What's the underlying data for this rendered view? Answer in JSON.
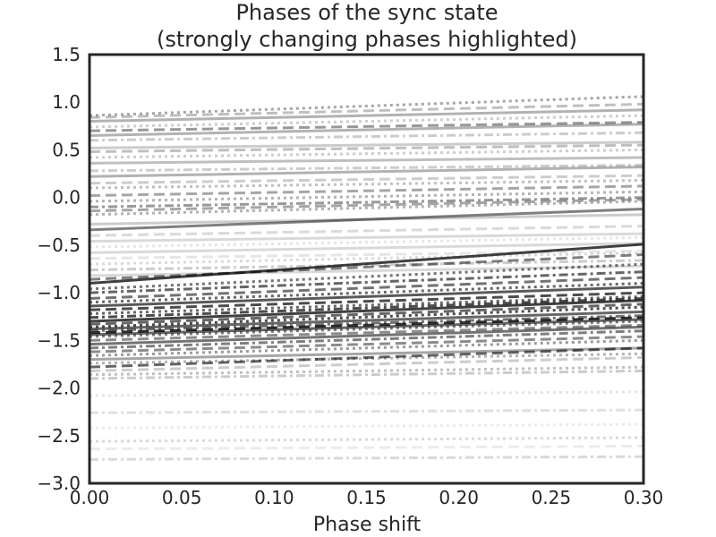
{
  "chart_data": {
    "type": "line",
    "title_line1": "Phases of the sync state",
    "title_line2": "(strongly changing phases highlighted)",
    "xlabel": "Phase shift",
    "ylabel": "",
    "xlim": [
      0.0,
      0.3
    ],
    "ylim": [
      -3.0,
      1.5
    ],
    "x_ticks": [
      0.0,
      0.05,
      0.1,
      0.15,
      0.2,
      0.25,
      0.3
    ],
    "x_tick_labels": [
      "0.00",
      "0.05",
      "0.10",
      "0.15",
      "0.20",
      "0.25",
      "0.30"
    ],
    "y_ticks": [
      1.5,
      1.0,
      0.5,
      0.0,
      -0.5,
      -1.0,
      -1.5,
      -2.0,
      -2.5,
      -3.0
    ],
    "y_tick_labels": [
      "1.5",
      "1.0",
      "0.5",
      "0.0",
      "−0.5",
      "−1.0",
      "−1.5",
      "−2.0",
      "−2.5",
      "−3.0"
    ],
    "grid": false,
    "legend": "none",
    "line_color": "#000000",
    "series_styles": [
      "solid",
      "dashed",
      "dotted",
      "dashdot"
    ],
    "series": [
      {
        "start": 0.86,
        "end": 1.06,
        "alpha": 0.35,
        "style": "dotted"
      },
      {
        "start": 0.84,
        "end": 0.98,
        "alpha": 0.25,
        "style": "dashed"
      },
      {
        "start": 0.8,
        "end": 0.92,
        "alpha": 0.3,
        "style": "solid"
      },
      {
        "start": 0.74,
        "end": 0.86,
        "alpha": 0.2,
        "style": "dotted"
      },
      {
        "start": 0.7,
        "end": 0.79,
        "alpha": 0.4,
        "style": "dashed"
      },
      {
        "start": 0.65,
        "end": 0.77,
        "alpha": 0.3,
        "style": "solid"
      },
      {
        "start": 0.6,
        "end": 0.68,
        "alpha": 0.2,
        "style": "dashdot"
      },
      {
        "start": 0.52,
        "end": 0.58,
        "alpha": 0.2,
        "style": "solid"
      },
      {
        "start": 0.48,
        "end": 0.55,
        "alpha": 0.25,
        "style": "dashed"
      },
      {
        "start": 0.42,
        "end": 0.5,
        "alpha": 0.2,
        "style": "dotted"
      },
      {
        "start": 0.36,
        "end": 0.42,
        "alpha": 0.25,
        "style": "solid"
      },
      {
        "start": 0.28,
        "end": 0.34,
        "alpha": 0.2,
        "style": "dashdot"
      },
      {
        "start": 0.22,
        "end": 0.32,
        "alpha": 0.3,
        "style": "solid"
      },
      {
        "start": 0.15,
        "end": 0.23,
        "alpha": 0.2,
        "style": "dashed"
      },
      {
        "start": 0.1,
        "end": 0.18,
        "alpha": 0.25,
        "style": "dotted"
      },
      {
        "start": 0.02,
        "end": 0.12,
        "alpha": 0.35,
        "style": "dashed"
      },
      {
        "start": -0.04,
        "end": 0.06,
        "alpha": 0.3,
        "style": "dotted"
      },
      {
        "start": -0.1,
        "end": 0.0,
        "alpha": 0.4,
        "style": "dashdot"
      },
      {
        "start": -0.14,
        "end": -0.02,
        "alpha": 0.35,
        "style": "dashed"
      },
      {
        "start": -0.18,
        "end": -0.04,
        "alpha": 0.3,
        "style": "dotted"
      },
      {
        "start": -0.34,
        "end": -0.12,
        "alpha": 0.5,
        "style": "solid"
      },
      {
        "start": -0.28,
        "end": -0.18,
        "alpha": 0.2,
        "style": "solid"
      },
      {
        "start": -0.4,
        "end": -0.3,
        "alpha": 0.15,
        "style": "dashed"
      },
      {
        "start": -0.46,
        "end": -0.38,
        "alpha": 0.15,
        "style": "solid"
      },
      {
        "start": -0.52,
        "end": -0.42,
        "alpha": 0.1,
        "style": "dotted"
      },
      {
        "start": -0.58,
        "end": -0.48,
        "alpha": 0.15,
        "style": "solid"
      },
      {
        "start": -0.64,
        "end": -0.56,
        "alpha": 0.1,
        "style": "dashed"
      },
      {
        "start": -0.7,
        "end": -0.58,
        "alpha": 0.15,
        "style": "dotted"
      },
      {
        "start": -0.76,
        "end": -0.66,
        "alpha": 0.2,
        "style": "dashdot"
      },
      {
        "start": -0.82,
        "end": -0.72,
        "alpha": 0.15,
        "style": "solid"
      },
      {
        "start": -0.9,
        "end": -0.49,
        "alpha": 0.75,
        "style": "solid"
      },
      {
        "start": -0.86,
        "end": -0.6,
        "alpha": 0.5,
        "style": "dashed"
      },
      {
        "start": -0.96,
        "end": -0.7,
        "alpha": 0.55,
        "style": "dotted"
      },
      {
        "start": -1.0,
        "end": -0.78,
        "alpha": 0.6,
        "style": "dashdot"
      },
      {
        "start": -1.06,
        "end": -0.84,
        "alpha": 0.55,
        "style": "dashed"
      },
      {
        "start": -1.1,
        "end": -0.9,
        "alpha": 0.6,
        "style": "dotted"
      },
      {
        "start": -1.14,
        "end": -0.94,
        "alpha": 0.65,
        "style": "solid"
      },
      {
        "start": -1.18,
        "end": -1.0,
        "alpha": 0.7,
        "style": "dashed"
      },
      {
        "start": -1.22,
        "end": -1.04,
        "alpha": 0.6,
        "style": "dotted"
      },
      {
        "start": -1.26,
        "end": -1.06,
        "alpha": 0.7,
        "style": "dashdot"
      },
      {
        "start": -1.3,
        "end": -1.08,
        "alpha": 0.75,
        "style": "solid"
      },
      {
        "start": -1.33,
        "end": -1.12,
        "alpha": 0.6,
        "style": "dashed"
      },
      {
        "start": -1.36,
        "end": -1.15,
        "alpha": 0.7,
        "style": "dotted"
      },
      {
        "start": -1.38,
        "end": -1.2,
        "alpha": 0.6,
        "style": "solid"
      },
      {
        "start": -1.4,
        "end": -1.24,
        "alpha": 0.55,
        "style": "dashdot"
      },
      {
        "start": -1.42,
        "end": -1.26,
        "alpha": 0.8,
        "style": "dashed"
      },
      {
        "start": -1.44,
        "end": -1.28,
        "alpha": 0.6,
        "style": "solid"
      },
      {
        "start": -1.46,
        "end": -1.3,
        "alpha": 0.5,
        "style": "dotted"
      },
      {
        "start": -1.5,
        "end": -1.34,
        "alpha": 0.45,
        "style": "dashed"
      },
      {
        "start": -1.54,
        "end": -1.36,
        "alpha": 0.55,
        "style": "solid"
      },
      {
        "start": -1.58,
        "end": -1.4,
        "alpha": 0.5,
        "style": "dashdot"
      },
      {
        "start": -1.62,
        "end": -1.46,
        "alpha": 0.45,
        "style": "dashed"
      },
      {
        "start": -1.66,
        "end": -1.5,
        "alpha": 0.4,
        "style": "dotted"
      },
      {
        "start": -1.7,
        "end": -1.58,
        "alpha": 0.35,
        "style": "solid"
      },
      {
        "start": -1.78,
        "end": -1.58,
        "alpha": 0.6,
        "style": "dashed"
      },
      {
        "start": -1.74,
        "end": -1.64,
        "alpha": 0.3,
        "style": "dotted"
      },
      {
        "start": -1.82,
        "end": -1.68,
        "alpha": 0.2,
        "style": "dashed"
      },
      {
        "start": -1.86,
        "end": -1.78,
        "alpha": 0.25,
        "style": "dotted"
      },
      {
        "start": -1.9,
        "end": -1.82,
        "alpha": 0.2,
        "style": "dashdot"
      },
      {
        "start": -2.08,
        "end": -2.04,
        "alpha": 0.1,
        "style": "dotted"
      },
      {
        "start": -2.26,
        "end": -2.23,
        "alpha": 0.12,
        "style": "dashdot"
      },
      {
        "start": -2.42,
        "end": -2.38,
        "alpha": 0.08,
        "style": "dotted"
      },
      {
        "start": -2.56,
        "end": -2.52,
        "alpha": 0.15,
        "style": "dotted"
      },
      {
        "start": -2.64,
        "end": -2.61,
        "alpha": 0.08,
        "style": "dashed"
      },
      {
        "start": -2.75,
        "end": -2.72,
        "alpha": 0.15,
        "style": "dashdot"
      }
    ]
  }
}
